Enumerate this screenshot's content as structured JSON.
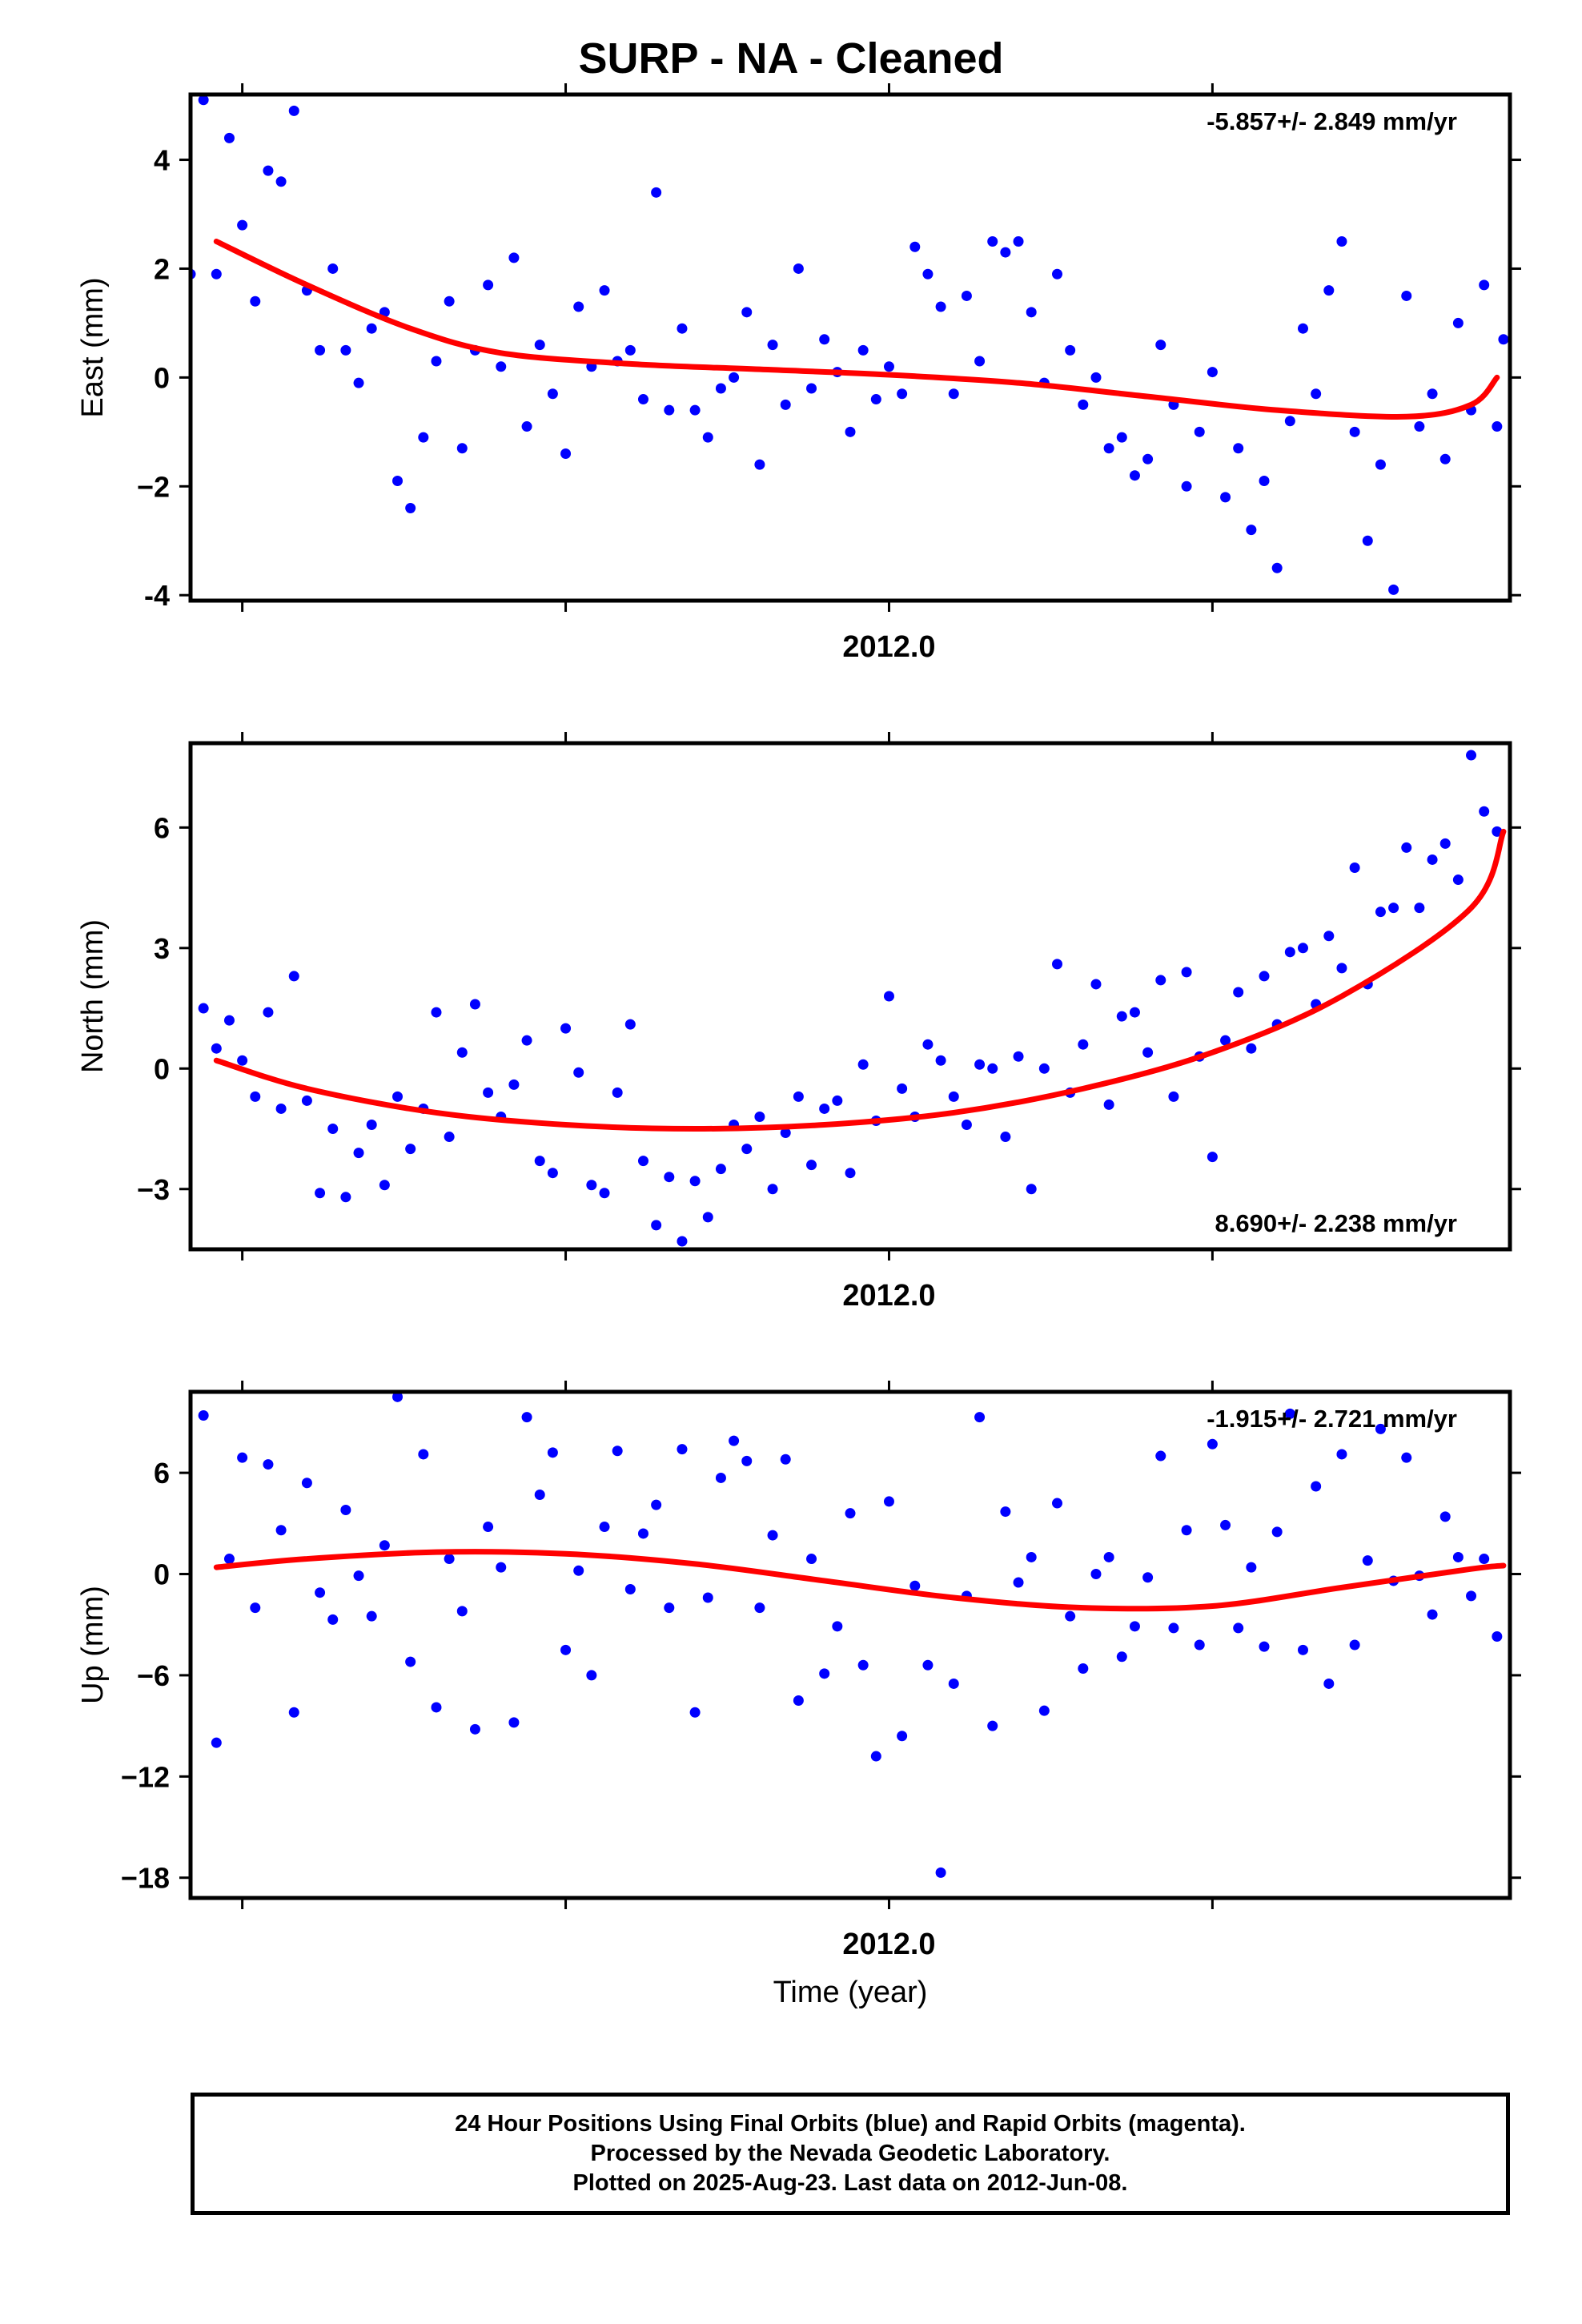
{
  "title": "SURP  - NA - Cleaned",
  "footer": {
    "line1": "24 Hour Positions Using Final Orbits (blue) and Rapid Orbits (magenta).",
    "line2": "Processed by the Nevada Geodetic Laboratory.",
    "line3": "Plotted on 2025-Aug-23. Last data on 2012-Jun-08."
  },
  "colors": {
    "points": "#0000ff",
    "fit": "#ff0000",
    "axes": "#000000"
  },
  "chart_data": [
    {
      "type": "scatter",
      "panel": "east",
      "ylabel": "East (mm)",
      "xtick_label": "2012.0",
      "xlim": [
        2011.46,
        2012.48
      ],
      "ylim": [
        -4.1,
        5.2
      ],
      "yticks": [
        4,
        2,
        0,
        -2,
        -4
      ],
      "yticklabels": [
        "4",
        "2",
        "0",
        "−2",
        "-4"
      ],
      "rate_label": "-5.857+/- 2.849 mm/yr",
      "rate_position": "top-right",
      "fit_curve": {
        "x": [
          2011.48,
          2011.55,
          2011.63,
          2011.7,
          2011.8,
          2011.9,
          2012.0,
          2012.1,
          2012.2,
          2012.3,
          2012.4,
          2012.45,
          2012.47
        ],
        "y": [
          2.5,
          1.7,
          0.9,
          0.45,
          0.25,
          0.15,
          0.05,
          -0.1,
          -0.35,
          -0.6,
          -0.72,
          -0.5,
          0.0
        ]
      },
      "points": {
        "x": [
          2011.46,
          2011.47,
          2011.48,
          2011.49,
          2011.5,
          2011.51,
          2011.52,
          2011.53,
          2011.54,
          2011.55,
          2011.56,
          2011.57,
          2011.58,
          2011.59,
          2011.6,
          2011.61,
          2011.62,
          2011.63,
          2011.64,
          2011.65,
          2011.66,
          2011.67,
          2011.68,
          2011.69,
          2011.7,
          2011.71,
          2011.72,
          2011.73,
          2011.74,
          2011.75,
          2011.76,
          2011.77,
          2011.78,
          2011.79,
          2011.8,
          2011.81,
          2011.82,
          2011.83,
          2011.84,
          2011.85,
          2011.86,
          2011.87,
          2011.88,
          2011.89,
          2011.9,
          2011.91,
          2011.92,
          2011.93,
          2011.94,
          2011.95,
          2011.96,
          2011.97,
          2011.98,
          2011.99,
          2012.0,
          2012.01,
          2012.02,
          2012.03,
          2012.04,
          2012.05,
          2012.06,
          2012.07,
          2012.08,
          2012.09,
          2012.1,
          2012.11,
          2012.12,
          2012.13,
          2012.14,
          2012.15,
          2012.16,
          2012.17,
          2012.18,
          2012.19,
          2012.2,
          2012.21,
          2012.22,
          2012.23,
          2012.24,
          2012.25,
          2012.26,
          2012.27,
          2012.28,
          2012.29,
          2012.3,
          2012.31,
          2012.32,
          2012.33,
          2012.34,
          2012.35,
          2012.36,
          2012.37,
          2012.38,
          2012.39,
          2012.4,
          2012.41,
          2012.42,
          2012.43,
          2012.44,
          2012.45,
          2012.46,
          2012.47,
          2012.475
        ],
        "y": [
          1.9,
          5.1,
          1.9,
          4.4,
          2.8,
          1.4,
          3.8,
          3.6,
          4.9,
          1.6,
          0.5,
          2.0,
          0.5,
          -0.1,
          0.9,
          1.2,
          -1.9,
          -2.4,
          -1.1,
          0.3,
          1.4,
          -1.3,
          0.5,
          1.7,
          0.2,
          2.2,
          -0.9,
          0.6,
          -0.3,
          -1.4,
          1.3,
          0.2,
          1.6,
          0.3,
          0.5,
          -0.4,
          3.4,
          -0.6,
          0.9,
          -0.6,
          -1.1,
          -0.2,
          0.0,
          1.2,
          -1.6,
          0.6,
          -0.5,
          2.0,
          -0.2,
          0.7,
          0.1,
          -1.0,
          0.5,
          -0.4,
          0.2,
          -0.3,
          2.4,
          1.9,
          1.3,
          -0.3,
          1.5,
          0.3,
          2.5,
          2.3,
          2.5,
          1.2,
          -0.1,
          1.9,
          0.5,
          -0.5,
          0.0,
          -1.3,
          -1.1,
          -1.8,
          -1.5,
          0.6,
          -0.5,
          -2.0,
          -1.0,
          0.1,
          -2.2,
          -1.3,
          -2.8,
          -1.9,
          -3.5,
          -0.8,
          0.9,
          -0.3,
          1.6,
          2.5,
          -1.0,
          -3.0,
          -1.6,
          -3.9,
          1.5,
          -0.9,
          -0.3,
          -1.5,
          1.0,
          -0.6,
          1.7,
          -0.9,
          0.7
        ]
      }
    },
    {
      "type": "scatter",
      "panel": "north",
      "ylabel": "North (mm)",
      "xtick_label": "2012.0",
      "xlim": [
        2011.46,
        2012.48
      ],
      "ylim": [
        -4.5,
        8.1
      ],
      "yticks": [
        6,
        3,
        0,
        -3
      ],
      "yticklabels": [
        "6",
        "3",
        "0",
        "−3"
      ],
      "rate_label": "8.690+/- 2.238 mm/yr",
      "rate_position": "bottom-right",
      "fit_curve": {
        "x": [
          2011.48,
          2011.55,
          2011.65,
          2011.75,
          2011.85,
          2011.95,
          2012.05,
          2012.15,
          2012.25,
          2012.35,
          2012.45,
          2012.475
        ],
        "y": [
          0.2,
          -0.5,
          -1.1,
          -1.4,
          -1.5,
          -1.4,
          -1.1,
          -0.5,
          0.4,
          1.8,
          4.0,
          5.9
        ]
      },
      "points": {
        "x": [
          2011.47,
          2011.48,
          2011.49,
          2011.5,
          2011.51,
          2011.52,
          2011.53,
          2011.54,
          2011.55,
          2011.56,
          2011.57,
          2011.58,
          2011.59,
          2011.6,
          2011.61,
          2011.62,
          2011.63,
          2011.64,
          2011.65,
          2011.66,
          2011.67,
          2011.68,
          2011.69,
          2011.7,
          2011.71,
          2011.72,
          2011.73,
          2011.74,
          2011.75,
          2011.76,
          2011.77,
          2011.78,
          2011.79,
          2011.8,
          2011.81,
          2011.82,
          2011.83,
          2011.84,
          2011.85,
          2011.86,
          2011.87,
          2011.88,
          2011.89,
          2011.9,
          2011.91,
          2011.92,
          2011.93,
          2011.94,
          2011.95,
          2011.96,
          2011.97,
          2011.98,
          2011.99,
          2012.0,
          2012.01,
          2012.02,
          2012.03,
          2012.04,
          2012.05,
          2012.06,
          2012.07,
          2012.08,
          2012.09,
          2012.1,
          2012.11,
          2012.12,
          2012.13,
          2012.14,
          2012.15,
          2012.16,
          2012.17,
          2012.18,
          2012.19,
          2012.2,
          2012.21,
          2012.22,
          2012.23,
          2012.24,
          2012.25,
          2012.26,
          2012.27,
          2012.28,
          2012.29,
          2012.3,
          2012.31,
          2012.32,
          2012.33,
          2012.34,
          2012.35,
          2012.36,
          2012.37,
          2012.38,
          2012.39,
          2012.4,
          2012.41,
          2012.42,
          2012.43,
          2012.44,
          2012.45,
          2012.46,
          2012.47
        ],
        "y": [
          1.5,
          0.5,
          1.2,
          0.2,
          -0.7,
          1.4,
          -1.0,
          2.3,
          -0.8,
          -3.1,
          -1.5,
          -3.2,
          -2.1,
          -1.4,
          -2.9,
          -0.7,
          -2.0,
          -1.0,
          1.4,
          -1.7,
          0.4,
          1.6,
          -0.6,
          -1.2,
          -0.4,
          0.7,
          -2.3,
          -2.6,
          1.0,
          -0.1,
          -2.9,
          -3.1,
          -0.6,
          1.1,
          -2.3,
          -3.9,
          -2.7,
          -4.3,
          -2.8,
          -3.7,
          -2.5,
          -1.4,
          -2.0,
          -1.2,
          -3.0,
          -1.6,
          -0.7,
          -2.4,
          -1.0,
          -0.8,
          -2.6,
          0.1,
          -1.3,
          1.8,
          -0.5,
          -1.2,
          0.6,
          0.2,
          -0.7,
          -1.4,
          0.1,
          0.0,
          -1.7,
          0.3,
          -3.0,
          0.0,
          2.6,
          -0.6,
          0.6,
          2.1,
          -0.9,
          1.3,
          1.4,
          0.4,
          2.2,
          -0.7,
          2.4,
          0.3,
          -2.2,
          0.7,
          1.9,
          0.5,
          2.3,
          1.1,
          2.9,
          3.0,
          1.6,
          3.3,
          2.5,
          5.0,
          2.1,
          3.9,
          4.0,
          5.5,
          4.0,
          5.2,
          5.6,
          4.7,
          7.8,
          6.4,
          5.9
        ]
      }
    },
    {
      "type": "scatter",
      "panel": "up",
      "ylabel": "Up (mm)",
      "xtick_label": "2012.0",
      "xlabel": "Time (year)",
      "xlim": [
        2011.46,
        2012.48
      ],
      "ylim": [
        -19.2,
        10.8
      ],
      "yticks": [
        6,
        0,
        -6,
        -12,
        -18
      ],
      "yticklabels": [
        "6",
        "0",
        "−6",
        "−12",
        "−18"
      ],
      "rate_label": "-1.915+/- 2.721 mm/yr",
      "rate_position": "top-right",
      "fit_curve": {
        "x": [
          2011.48,
          2011.55,
          2011.65,
          2011.75,
          2011.85,
          2011.95,
          2012.05,
          2012.15,
          2012.25,
          2012.35,
          2012.45,
          2012.475
        ],
        "y": [
          0.4,
          0.9,
          1.3,
          1.2,
          0.6,
          -0.4,
          -1.4,
          -2.0,
          -1.9,
          -0.8,
          0.3,
          0.5
        ]
      },
      "points": {
        "x": [
          2011.47,
          2011.48,
          2011.49,
          2011.5,
          2011.51,
          2011.52,
          2011.53,
          2011.54,
          2011.55,
          2011.56,
          2011.57,
          2011.58,
          2011.59,
          2011.6,
          2011.61,
          2011.62,
          2011.63,
          2011.64,
          2011.65,
          2011.66,
          2011.67,
          2011.68,
          2011.69,
          2011.7,
          2011.71,
          2011.72,
          2011.73,
          2011.74,
          2011.75,
          2011.76,
          2011.77,
          2011.78,
          2011.79,
          2011.8,
          2011.81,
          2011.82,
          2011.83,
          2011.84,
          2011.85,
          2011.86,
          2011.87,
          2011.88,
          2011.89,
          2011.9,
          2011.91,
          2011.92,
          2011.93,
          2011.94,
          2011.95,
          2011.96,
          2011.97,
          2011.98,
          2011.99,
          2012.0,
          2012.01,
          2012.02,
          2012.03,
          2012.04,
          2012.05,
          2012.06,
          2012.07,
          2012.08,
          2012.09,
          2012.1,
          2012.11,
          2012.12,
          2012.13,
          2012.14,
          2012.15,
          2012.16,
          2012.17,
          2012.18,
          2012.19,
          2012.2,
          2012.21,
          2012.22,
          2012.23,
          2012.24,
          2012.25,
          2012.26,
          2012.27,
          2012.28,
          2012.29,
          2012.3,
          2012.31,
          2012.32,
          2012.33,
          2012.34,
          2012.35,
          2012.36,
          2012.37,
          2012.38,
          2012.39,
          2012.4,
          2012.41,
          2012.42,
          2012.43,
          2012.44,
          2012.45,
          2012.46,
          2012.47
        ],
        "y": [
          9.4,
          -10.0,
          0.9,
          6.9,
          -2.0,
          6.5,
          2.6,
          -8.2,
          5.4,
          -1.1,
          -2.7,
          3.8,
          -0.1,
          -2.5,
          1.7,
          10.5,
          -5.2,
          7.1,
          -7.9,
          0.9,
          -2.2,
          -9.2,
          2.8,
          0.4,
          -8.8,
          9.3,
          4.7,
          7.2,
          -4.5,
          0.2,
          -6.0,
          2.8,
          7.3,
          -0.9,
          2.4,
          4.1,
          -2.0,
          7.4,
          -8.2,
          -1.4,
          5.7,
          7.9,
          6.7,
          -2.0,
          2.3,
          6.8,
          -7.5,
          0.9,
          -5.9,
          -3.1,
          3.6,
          -5.4,
          -10.8,
          4.3,
          -9.6,
          -0.7,
          -5.4,
          -17.7,
          -6.5,
          -1.3,
          9.3,
          -9.0,
          3.7,
          -0.5,
          1.0,
          -8.1,
          4.2,
          -2.5,
          -5.6,
          0.0,
          1.0,
          -4.9,
          -3.1,
          -0.2,
          7.0,
          -3.2,
          2.6,
          -4.2,
          7.7,
          2.9,
          -3.2,
          0.4,
          -4.3,
          2.5,
          9.5,
          -4.5,
          5.2,
          -6.5,
          7.1,
          -4.2,
          0.8,
          8.6,
          -0.4,
          6.9,
          -0.1,
          -2.4,
          3.4,
          1.0,
          -1.3,
          0.9,
          -3.7
        ]
      }
    }
  ]
}
